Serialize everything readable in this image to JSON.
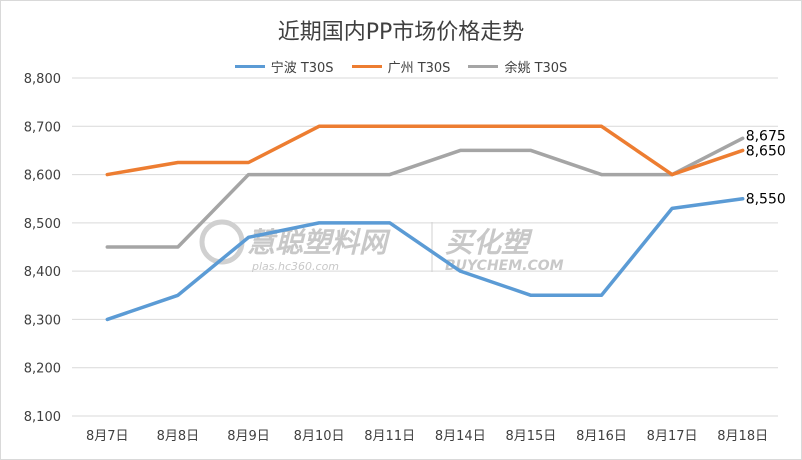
{
  "chart_data": {
    "type": "line",
    "title": "近期国内PP市场价格走势",
    "categories": [
      "8月7日",
      "8月8日",
      "8月9日",
      "8月10日",
      "8月11日",
      "8月14日",
      "8月15日",
      "8月16日",
      "8月17日",
      "8月18日"
    ],
    "ylim": [
      8100,
      8800
    ],
    "yticks": [
      "8,100",
      "8,200",
      "8,300",
      "8,400",
      "8,500",
      "8,600",
      "8,700",
      "8,800"
    ],
    "grid": true,
    "legend_position": "top",
    "series": [
      {
        "name": "宁波 T30S",
        "color": "#5b9bd5",
        "values": [
          8300,
          8350,
          8470,
          8500,
          8500,
          8400,
          8350,
          8350,
          8530,
          8550
        ],
        "end_label": "8,550"
      },
      {
        "name": "广州 T30S",
        "color": "#ed7d31",
        "values": [
          8600,
          8625,
          8625,
          8700,
          8700,
          8700,
          8700,
          8700,
          8600,
          8650
        ],
        "end_label": "8,650"
      },
      {
        "name": "余姚 T30S",
        "color": "#a5a5a5",
        "values": [
          8450,
          8450,
          8600,
          8600,
          8600,
          8650,
          8650,
          8600,
          8600,
          8675
        ],
        "end_label": "8,675"
      }
    ]
  },
  "watermark": {
    "left_brand": "慧聪塑料网",
    "left_url": "plas.hc360.com",
    "right_brand": "买化塑",
    "right_url": "BUYCHEM.COM"
  }
}
